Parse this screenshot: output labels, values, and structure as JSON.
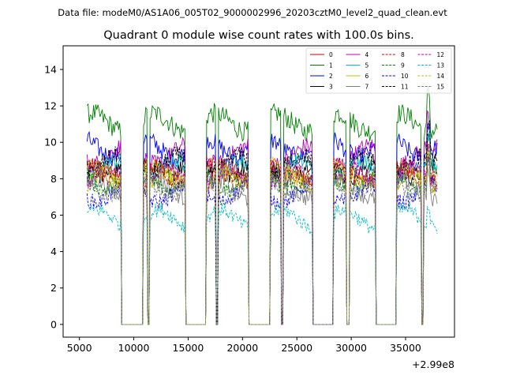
{
  "figure": {
    "suptitle": "Data file: modeM0/AS1A06_005T02_9000002996_20203cztM0_level2_quad_clean.evt",
    "title": "Quadrant 0 module wise count rates with 100.0s bins."
  },
  "chart_data": {
    "type": "line",
    "title": "Quadrant 0 module wise count rates with 100.0s bins.",
    "xlabel": "",
    "ylabel": "",
    "x_offset_label": "+2.99e8",
    "x_offset": 299000000,
    "xlim": [
      3500,
      39500
    ],
    "ylim": [
      -0.7,
      15.3
    ],
    "xticks": [
      5000,
      10000,
      15000,
      20000,
      25000,
      30000,
      35000
    ],
    "xtick_labels": [
      "5000",
      "10000",
      "15000",
      "20000",
      "25000",
      "30000",
      "35000"
    ],
    "yticks": [
      0,
      2,
      4,
      6,
      8,
      10,
      12,
      14
    ],
    "ytick_labels": [
      "0",
      "2",
      "4",
      "6",
      "8",
      "10",
      "12",
      "14"
    ],
    "bin_size_s": 100,
    "grid": false,
    "legend_location": "top-right",
    "legend_columns": 4,
    "active_intervals": [
      [
        5700,
        8800
      ],
      [
        10900,
        11200
      ],
      [
        11500,
        14700
      ],
      [
        16700,
        17500
      ],
      [
        17800,
        20500
      ],
      [
        22600,
        23500
      ],
      [
        23800,
        26400
      ],
      [
        28400,
        29500
      ],
      [
        29900,
        32200
      ],
      [
        34200,
        36400
      ],
      [
        36700,
        37900
      ]
    ],
    "series": [
      {
        "name": "0",
        "color": "#cc0000",
        "style": "solid",
        "mean_rate": 8.2
      },
      {
        "name": "1",
        "color": "#008000",
        "style": "solid",
        "mean_rate": 11.1
      },
      {
        "name": "2",
        "color": "#0000ff",
        "style": "solid",
        "mean_rate": 9.7
      },
      {
        "name": "3",
        "color": "#000000",
        "style": "solid",
        "mean_rate": 8.6
      },
      {
        "name": "4",
        "color": "#bf00bf",
        "style": "solid",
        "mean_rate": 9.3
      },
      {
        "name": "5",
        "color": "#00bfbf",
        "style": "solid",
        "mean_rate": 8.5
      },
      {
        "name": "6",
        "color": "#bfbf00",
        "style": "solid",
        "mean_rate": 7.8
      },
      {
        "name": "7",
        "color": "#808080",
        "style": "solid",
        "mean_rate": 7.4
      },
      {
        "name": "8",
        "color": "#cc0000",
        "style": "dashed",
        "mean_rate": 8.4
      },
      {
        "name": "9",
        "color": "#008000",
        "style": "dashed",
        "mean_rate": 7.9
      },
      {
        "name": "10",
        "color": "#0000ff",
        "style": "dashed",
        "mean_rate": 7.2
      },
      {
        "name": "11",
        "color": "#000000",
        "style": "dashed",
        "mean_rate": 8.8
      },
      {
        "name": "12",
        "color": "#bf00bf",
        "style": "dashed",
        "mean_rate": 8.0
      },
      {
        "name": "13",
        "color": "#00bfbf",
        "style": "dashed",
        "mean_rate": 5.8
      },
      {
        "name": "14",
        "color": "#bfbf00",
        "style": "dashed",
        "mean_rate": 8.3
      },
      {
        "name": "15",
        "color": "#808080",
        "style": "dashed",
        "mean_rate": 7.6
      }
    ]
  }
}
